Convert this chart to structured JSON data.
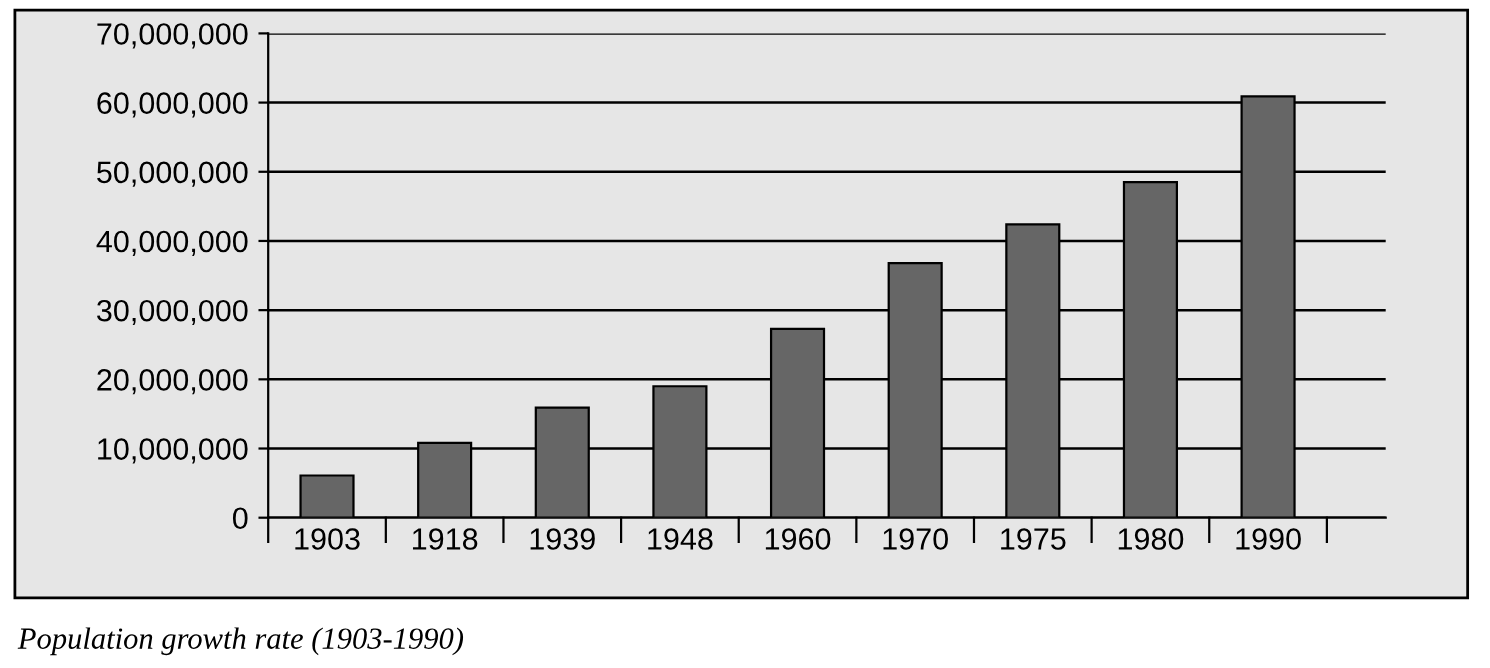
{
  "chart_data": {
    "type": "bar",
    "categories": [
      "1903",
      "1918",
      "1939",
      "1948",
      "1960",
      "1970",
      "1975",
      "1980",
      "1990"
    ],
    "values": [
      6100000,
      10800000,
      15900000,
      19000000,
      27300000,
      36800000,
      42400000,
      48500000,
      60900000
    ],
    "color": "#666666",
    "ylim": [
      0,
      70000000
    ],
    "yticks": [
      {
        "value": 0,
        "label": "0"
      },
      {
        "value": 10000000,
        "label": "10,000,000"
      },
      {
        "value": 20000000,
        "label": "20,000,000"
      },
      {
        "value": 30000000,
        "label": "30,000,000"
      },
      {
        "value": 40000000,
        "label": "40,000,000"
      },
      {
        "value": 50000000,
        "label": "50,000,000"
      },
      {
        "value": 60000000,
        "label": "60,000,000"
      },
      {
        "value": 70000000,
        "label": "70,000,000"
      }
    ],
    "grid": "y",
    "annotations": [
      "Population growth rate (1903-1990)"
    ]
  }
}
